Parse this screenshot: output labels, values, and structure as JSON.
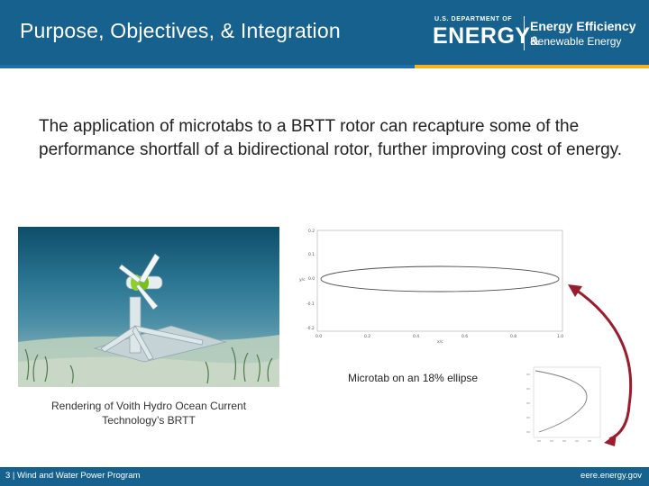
{
  "header": {
    "title": "Purpose, Objectives, & Integration",
    "logo": {
      "department": "U.S. DEPARTMENT OF",
      "energy": "ENERGY",
      "eere_line1": "Energy Efficiency &",
      "eere_line2": "Renewable Energy"
    }
  },
  "main": {
    "body_text": "The application of microtabs to a BRTT rotor can recapture some of the performance shortfall of a bidirectional rotor, further improving cost of energy.",
    "photo_caption": "Rendering of Voith Hydro Ocean Current Technology’s BRTT",
    "ellipse_label": "Microtab on an 18% ellipse"
  },
  "figures": {
    "top_plot": {
      "y_ticks": [
        "0.2",
        "0.1",
        "0.0",
        "-0.1",
        "-0.2"
      ],
      "x_ticks": [
        "0.0",
        "0.2",
        "0.4",
        "0.6",
        "0.8",
        "1.0"
      ],
      "ylabel": "y/c",
      "xlabel": "x/c"
    }
  },
  "footer": {
    "left": "3 | Wind and Water Power Program",
    "right": "eere.energy.gov"
  },
  "colors": {
    "header_bg": "#17618f",
    "stripe_gold": "#f0b323",
    "arrow": "#9b1c2c"
  }
}
